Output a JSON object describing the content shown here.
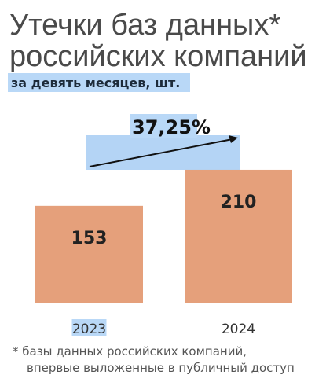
{
  "chart_data": {
    "type": "bar",
    "title": [
      "Утечки баз данных*",
      "российских компаний"
    ],
    "subtitle": "за девять месяцев, шт.",
    "annotation": "37,25%",
    "categories": [
      "2023",
      "2024"
    ],
    "values": [
      153,
      210
    ],
    "color": "#e5a07b",
    "footnote": [
      "* базы данных российских компаний,",
      "впервые выложенные в публичный доступ"
    ]
  }
}
